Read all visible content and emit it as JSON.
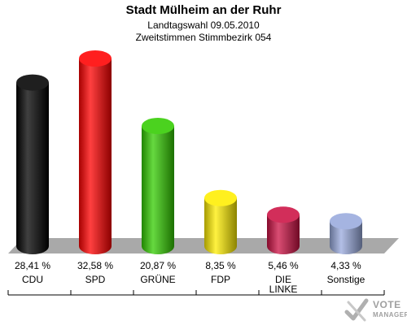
{
  "header": {
    "title": "Stadt Mülheim an der Ruhr",
    "subtitle1": "Landtagswahl 09.05.2010",
    "subtitle2": "Zweitstimmen Stimmbezirk 054"
  },
  "chart_data": {
    "type": "bar",
    "title": "Stadt Mülheim an der Ruhr",
    "subtitle": "Landtagswahl 09.05.2010 / Zweitstimmen Stimmbezirk 054",
    "categories": [
      "CDU",
      "SPD",
      "GRÜNE",
      "FDP",
      "DIE LINKE",
      "Sonstige"
    ],
    "category_lines": [
      [
        "CDU"
      ],
      [
        "SPD"
      ],
      [
        "GRÜNE"
      ],
      [
        "FDP"
      ],
      [
        "DIE",
        "LINKE"
      ],
      [
        "Sonstige"
      ]
    ],
    "values": [
      28.41,
      32.58,
      20.87,
      8.35,
      5.46,
      4.33
    ],
    "value_labels": [
      "28,41 %",
      "32,58 %",
      "20,87 %",
      "8,35 %",
      "5,46 %",
      "4,33 %"
    ],
    "colors": [
      "#000000",
      "#ff0000",
      "#33cc00",
      "#ffee00",
      "#cc1144",
      "#99aadd"
    ],
    "ylim": [
      0,
      32.58
    ],
    "grid": false,
    "legend": "none"
  },
  "logo": {
    "line1": "VOTE",
    "line2": "MANAGER"
  }
}
